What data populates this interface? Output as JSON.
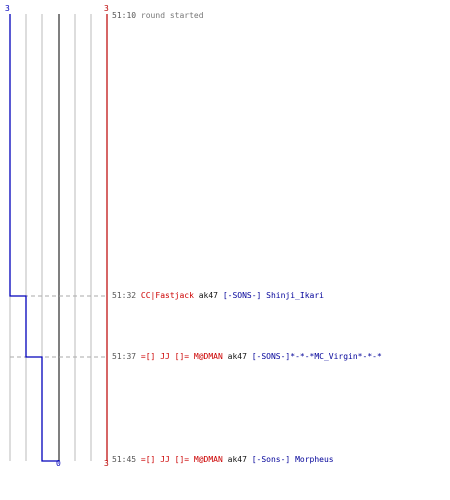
{
  "colors": {
    "blue": "#0000bb",
    "red": "#bb0000",
    "grid": "#bbbbbb",
    "dark_grid": "#555555",
    "dash": "#aaaaaa",
    "time": "#555555"
  },
  "axis_labels": {
    "top_left": "3",
    "top_right": "3",
    "bottom_right": "3",
    "bottom_mid": "0"
  },
  "events": [
    {
      "time": "51:10",
      "parts": [
        {
          "text": "round started",
          "color": "#777777"
        }
      ]
    },
    {
      "time": "51:32",
      "parts": [
        {
          "text": "CC|Fastjack",
          "color": "#cc0000"
        },
        {
          "text": " ak47 ",
          "color": "#111111"
        },
        {
          "text": "[-SONS-] Shinji_Ikari",
          "color": "#000099"
        }
      ]
    },
    {
      "time": "51:37",
      "parts": [
        {
          "text": "=[] JJ []= M@DMAN",
          "color": "#cc0000"
        },
        {
          "text": " ak47 ",
          "color": "#111111"
        },
        {
          "text": "[-SONS-]*-*-*MC_Virgin*-*-*",
          "color": "#000099"
        }
      ]
    },
    {
      "time": "51:45",
      "parts": [
        {
          "text": "=[] JJ []= M@DMAN",
          "color": "#cc0000"
        },
        {
          "text": " ak47 ",
          "color": "#111111"
        },
        {
          "text": "[-Sons-] Morpheus",
          "color": "#000099"
        }
      ]
    }
  ]
}
